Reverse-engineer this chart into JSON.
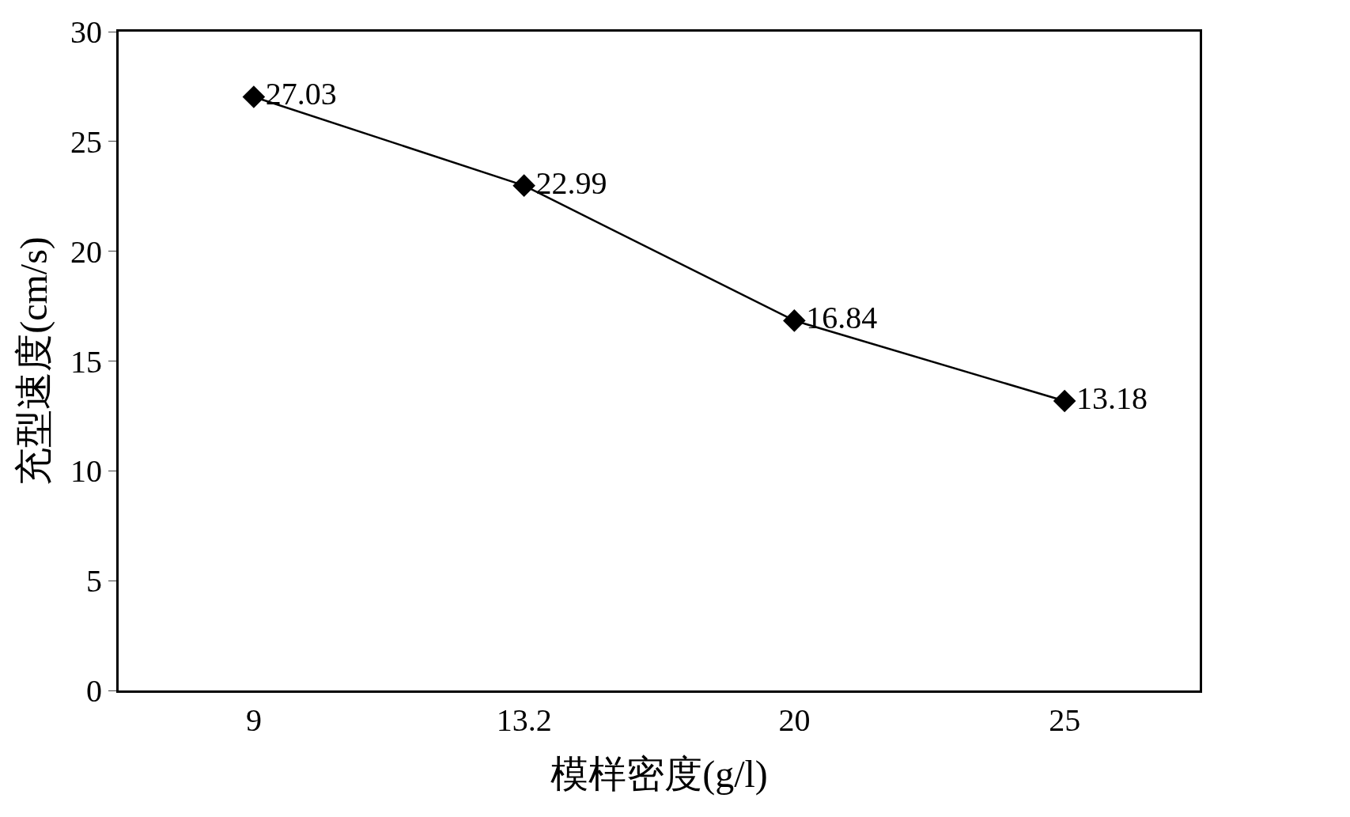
{
  "chart_data": {
    "type": "line",
    "xlabel": "模样密度(g/l)",
    "ylabel": "充型速度(cm/s)",
    "categories": [
      "9",
      "13.2",
      "20",
      "25"
    ],
    "series": [
      {
        "color": "#000000",
        "values": [
          27.03,
          22.99,
          16.84,
          13.18
        ]
      }
    ],
    "ylim": [
      0,
      30
    ],
    "yticks": [
      0,
      5,
      10,
      15,
      20,
      25,
      30
    ],
    "data_labels": true,
    "marker": "diamond",
    "line_style": "solid"
  }
}
